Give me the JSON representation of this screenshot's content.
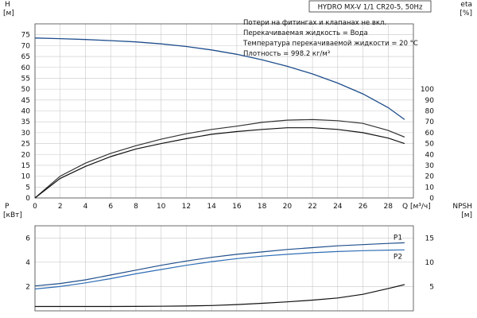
{
  "chart_data": [
    {
      "type": "line",
      "title_box": "HYDRO MX-V 1/1 CR20-5, 50Hz",
      "notes": [
        "Потери на фитингах и клапанах не вкл.",
        "Перекачиваемая жидкость = Вода",
        "Температура перекачиваемой жидкости = 20 °C",
        "Плотность = 998.2 кг/м³"
      ],
      "xlabel": "Q [м³/ч]",
      "xlim": [
        0,
        30
      ],
      "xticks": [
        0,
        2,
        4,
        6,
        8,
        10,
        12,
        14,
        16,
        18,
        20,
        22,
        24,
        26,
        28
      ],
      "y_left": {
        "label_top": "H",
        "label_unit": "[м]",
        "lim": [
          0,
          80
        ],
        "ticks": [
          0,
          5,
          10,
          15,
          20,
          25,
          30,
          35,
          40,
          45,
          50,
          55,
          60,
          65,
          70,
          75
        ]
      },
      "y_right": {
        "label_top": "eta",
        "label_unit": "[%]",
        "lim": [
          0,
          160
        ],
        "ticks": [
          0,
          10,
          20,
          30,
          40,
          50,
          60,
          70,
          80,
          90,
          100
        ]
      },
      "grid": true,
      "series": [
        {
          "axis": "left",
          "color": "#1f4e8c",
          "x": [
            0,
            2,
            4,
            6,
            8,
            10,
            12,
            14,
            16,
            18,
            20,
            22,
            24,
            26,
            28,
            29.3
          ],
          "y": [
            73.5,
            73.2,
            72.8,
            72.3,
            71.7,
            70.8,
            69.6,
            68,
            66,
            63.5,
            60.5,
            57,
            52.8,
            47.8,
            41.5,
            36
          ]
        },
        {
          "axis": "right",
          "color": "#333333",
          "x": [
            0,
            2,
            4,
            6,
            8,
            10,
            12,
            14,
            16,
            18,
            20,
            22,
            24,
            26,
            28,
            29.3
          ],
          "y": [
            0,
            20,
            32,
            41,
            48,
            54,
            59,
            63,
            66,
            69.5,
            71.5,
            72,
            71,
            68.5,
            62,
            56
          ]
        },
        {
          "axis": "right",
          "color": "#111111",
          "x": [
            0,
            2,
            4,
            6,
            8,
            10,
            12,
            14,
            16,
            18,
            20,
            22,
            24,
            26,
            28,
            29.3
          ],
          "y": [
            0,
            18,
            29,
            38,
            45,
            50,
            54.5,
            58.5,
            61,
            63,
            64.5,
            64.5,
            63,
            60,
            55,
            50
          ]
        }
      ]
    },
    {
      "type": "line",
      "xlim": [
        0,
        30
      ],
      "y_left": {
        "label_top": "P",
        "label_unit": "[кВт]",
        "lim": [
          0,
          7
        ],
        "ticks": [
          2,
          4,
          6
        ]
      },
      "y_right": {
        "label_top": "NPSH",
        "label_unit": "[м]",
        "lim": [
          0,
          17.5
        ],
        "ticks": [
          5,
          10,
          15
        ]
      },
      "grid": true,
      "series": [
        {
          "name": "P1",
          "axis": "left",
          "color": "#1f4e8c",
          "x": [
            0,
            2,
            4,
            6,
            8,
            10,
            12,
            14,
            16,
            18,
            20,
            22,
            24,
            26,
            28,
            29.3
          ],
          "y": [
            2.05,
            2.25,
            2.55,
            2.95,
            3.35,
            3.75,
            4.1,
            4.4,
            4.65,
            4.85,
            5.05,
            5.2,
            5.35,
            5.45,
            5.55,
            5.6
          ]
        },
        {
          "name": "P2",
          "axis": "left",
          "color": "#2f6db5",
          "x": [
            0,
            2,
            4,
            6,
            8,
            10,
            12,
            14,
            16,
            18,
            20,
            22,
            24,
            26,
            28,
            29.3
          ],
          "y": [
            1.8,
            2.0,
            2.3,
            2.65,
            3.05,
            3.4,
            3.75,
            4.05,
            4.3,
            4.5,
            4.65,
            4.78,
            4.88,
            4.95,
            5.0,
            5.02
          ]
        },
        {
          "axis": "right",
          "color": "#111111",
          "x": [
            0,
            2,
            4,
            6,
            8,
            10,
            12,
            14,
            16,
            18,
            20,
            22,
            24,
            26,
            28,
            29.3
          ],
          "y": [
            0.9,
            0.9,
            0.9,
            0.9,
            0.92,
            0.95,
            1.0,
            1.1,
            1.3,
            1.55,
            1.85,
            2.2,
            2.65,
            3.4,
            4.6,
            5.4
          ]
        }
      ]
    }
  ]
}
